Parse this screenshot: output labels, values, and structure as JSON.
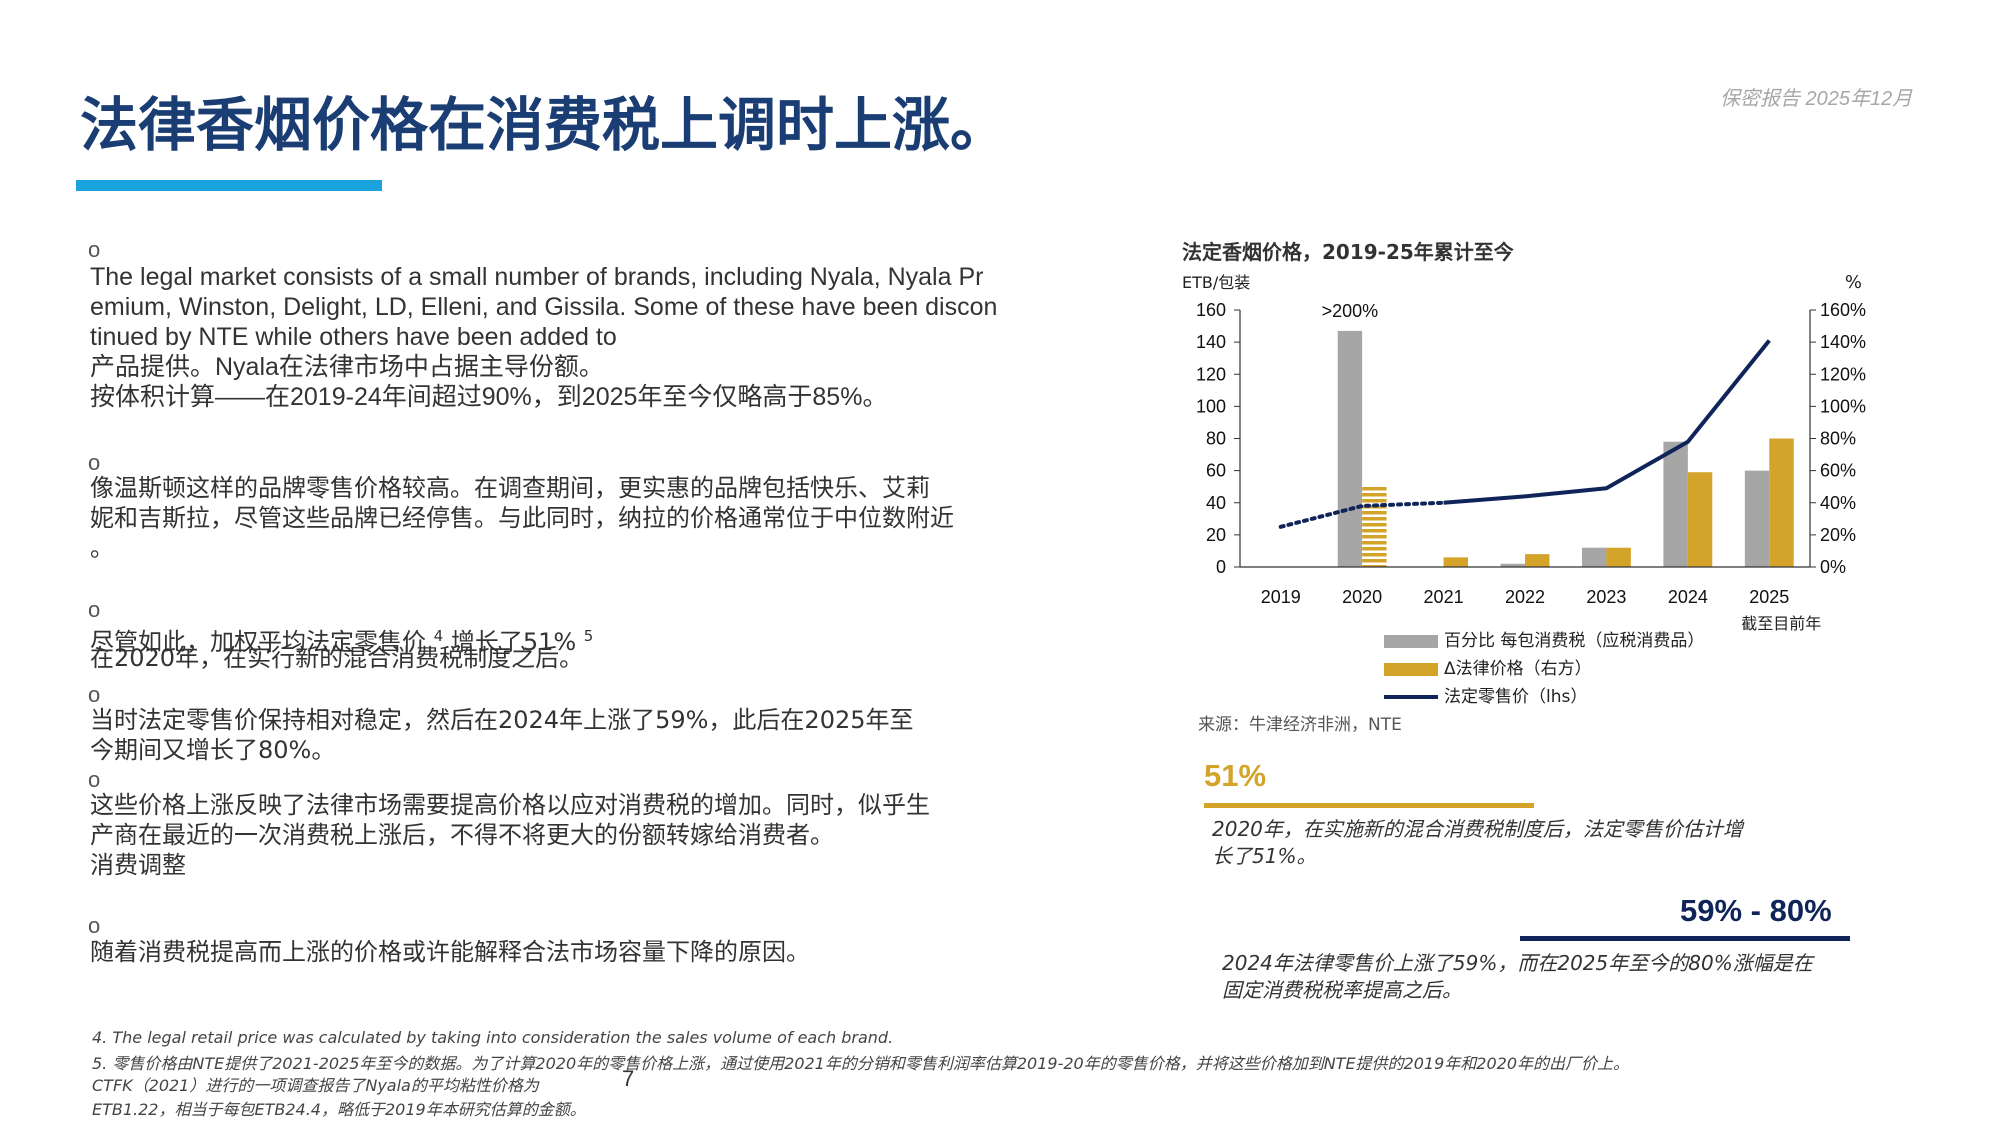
{
  "header": {
    "title": "法律香烟价格在消费税上调时上涨。",
    "confidential": "保密报告 2025年12月"
  },
  "bullets": [
    {
      "marker": "o",
      "lines": [
        " The legal market consists of a small number of brands, including Nyala, Nyala Pr",
        "emium, Winston, Delight, LD, Elleni, and Gissila. Some of these have been discon",
        "tinued by NTE while others have been added to",
        "产品提供。Nyala在法律市场中占据主导份额。",
        "按体积计算——在2019-24年间超过90%，到2025年至今仅略高于85%。"
      ]
    },
    {
      "marker": "o",
      "lines": [
        " 像温斯顿这样的品牌零售价格较高。在调查期间，更实惠的品牌包括快乐、艾莉",
        "妮和吉斯拉，尽管这些品牌已经停售。与此同时，纳拉的价格通常位于中位数附近",
        "。"
      ]
    },
    {
      "marker": "o",
      "line1_a": " 尽管如此，加权平均法定零售价 ",
      "ref1": "4",
      "line1_b": " 增长了51% ",
      "ref2": "5",
      "line2": "在2020年，在实行新的混合消费税制度之后。"
    },
    {
      "marker": "o",
      "lines": [
        " 当时法定零售价保持相对稳定，然后在2024年上涨了59%，此后在2025年至",
        "今期间又增长了80%。"
      ]
    },
    {
      "marker": "o",
      "lines": [
        " 这些价格上涨反映了法律市场需要提高价格以应对消费税的增加。同时，似乎生",
        "产商在最近的一次消费税上涨后，不得不将更大的份额转嫁给消费者。",
        "消费调整"
      ]
    },
    {
      "marker": "o",
      "lines": [
        " 随着消费税提高而上涨的价格或许能解释合法市场容量下降的原因。"
      ]
    }
  ],
  "chart_data": {
    "type": "bar",
    "title": "法定香烟价格，2019-25年累计至今",
    "categories": [
      "2019",
      "2020",
      "2021",
      "2022",
      "2023",
      "2024",
      "2025"
    ],
    "category_note": "截至目前年",
    "left_axis": {
      "label": "ETB/包装",
      "range": [
        0,
        160
      ],
      "ticks": [
        "0",
        "20",
        "40",
        "60",
        "80",
        "100",
        "120",
        "140",
        "160"
      ]
    },
    "right_axis": {
      "label": "%",
      "range": [
        0,
        160
      ],
      "ticks": [
        "0%",
        "20%",
        "40%",
        "60%",
        "80%",
        "100%",
        "120%",
        "140%",
        "160%"
      ]
    },
    "annotation": ">200%",
    "series": [
      {
        "name": "百分比 每包消费税（应税消费品）",
        "kind": "bar",
        "axis": "left",
        "color": "#a6a6a6",
        "values": [
          null,
          147,
          null,
          2,
          12,
          78,
          60
        ]
      },
      {
        "name": "Δ法律价格（右方）",
        "kind": "bar",
        "axis": "right",
        "color": "#d4a42a",
        "values": [
          null,
          51,
          6,
          8,
          12,
          59,
          80
        ],
        "hatched_index": 1
      },
      {
        "name": "法定零售价（lhs）",
        "kind": "line",
        "axis": "left",
        "color": "#0f2458",
        "values": [
          25,
          38,
          40,
          44,
          49,
          78,
          141
        ],
        "dotted_until_index": 2
      }
    ],
    "grid": false,
    "legend_position": "bottom"
  },
  "source": "来源：牛津经济非洲，NTE",
  "callouts": [
    {
      "value": "51%",
      "color": "#d4a42a",
      "text_lines": [
        "2020年，在实施新的混合消费税制度后，法定零售价估计增",
        "长了51%。"
      ]
    },
    {
      "value": "59% - 80%",
      "color": "#0f2458",
      "text_lines": [
        "2024年法律零售价上涨了59%，而在2025年至今的80%涨幅是在",
        "固定消费税税率提高之后。"
      ]
    }
  ],
  "footnotes": [
    "4.  The legal retail price was calculated by taking into consideration the sales volume of each brand.",
    "5.  零售价格由NTE提供了2021-2025年至今的数据。为了计算2020年的零售价格上涨，通过使用2021年的分销和零售利润率估算2019-20年的零售价格，并将这些价格加到NTE提供的2019年和2020年的出厂价上。",
    "CTFK（2021）进行的一项调查报告了Nyala的平均粘性价格为",
    "ETB1.22，相当于每包ETB24.4，略低于2019年本研究估算的金额。"
  ],
  "page_number": "7"
}
